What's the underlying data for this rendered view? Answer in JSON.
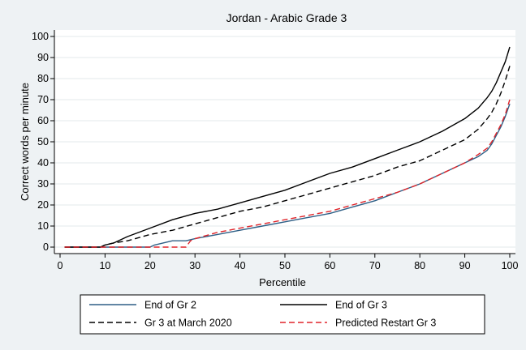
{
  "chart_data": {
    "type": "line",
    "title": "Jordan - Arabic Grade 3",
    "xlabel": "Percentile",
    "ylabel": "Correct words per minute",
    "xlim": [
      0,
      100
    ],
    "ylim": [
      0,
      100
    ],
    "x_ticks": [
      0,
      10,
      20,
      30,
      40,
      50,
      60,
      70,
      80,
      90,
      100
    ],
    "y_ticks": [
      0,
      10,
      20,
      30,
      40,
      50,
      60,
      70,
      80,
      90,
      100
    ],
    "grid": "horizontal",
    "legend_position": "bottom",
    "series": [
      {
        "name": "End of Gr 2",
        "color": "#2e5f86",
        "dash": "solid",
        "x": [
          1,
          10,
          15,
          20,
          21,
          23,
          25,
          28,
          30,
          35,
          40,
          45,
          50,
          55,
          60,
          65,
          70,
          75,
          80,
          85,
          90,
          93,
          95,
          96,
          97,
          98,
          99,
          100
        ],
        "y": [
          0,
          0,
          0,
          0,
          1,
          2,
          3,
          3,
          4,
          6,
          8,
          10,
          12,
          14,
          16,
          19,
          22,
          26,
          30,
          35,
          40,
          43,
          46,
          49,
          53,
          57,
          62,
          68
        ]
      },
      {
        "name": "End of Gr 3",
        "color": "#000000",
        "dash": "solid",
        "x": [
          1,
          5,
          9,
          10,
          12,
          15,
          20,
          25,
          30,
          35,
          40,
          45,
          50,
          55,
          60,
          65,
          70,
          75,
          80,
          85,
          90,
          93,
          95,
          96,
          97,
          98,
          99,
          100
        ],
        "y": [
          0,
          0,
          0,
          1,
          2,
          5,
          9,
          13,
          16,
          18,
          21,
          24,
          27,
          31,
          35,
          38,
          42,
          46,
          50,
          55,
          61,
          66,
          71,
          74,
          78,
          83,
          88,
          95
        ]
      },
      {
        "name": "Gr 3 at March 2020",
        "color": "#000000",
        "dash": "dashed",
        "x": [
          1,
          5,
          9,
          10,
          12,
          15,
          20,
          25,
          30,
          35,
          40,
          45,
          50,
          55,
          60,
          65,
          70,
          75,
          80,
          85,
          90,
          93,
          95,
          96,
          97,
          98,
          99,
          100
        ],
        "y": [
          0,
          0,
          0,
          1,
          2,
          3,
          6,
          8,
          11,
          14,
          17,
          19,
          22,
          25,
          28,
          31,
          34,
          38,
          41,
          46,
          51,
          56,
          61,
          64,
          68,
          73,
          79,
          86
        ]
      },
      {
        "name": "Predicted Restart Gr 3",
        "color": "#e0242a",
        "dash": "dashed",
        "x": [
          1,
          10,
          20,
          25,
          28,
          29,
          30,
          35,
          40,
          45,
          50,
          55,
          60,
          65,
          70,
          75,
          80,
          85,
          90,
          93,
          95,
          96,
          97,
          98,
          99,
          100
        ],
        "y": [
          0,
          0,
          0,
          0,
          0,
          3,
          4,
          7,
          9,
          11,
          13,
          15,
          17,
          20,
          23,
          26,
          30,
          35,
          40,
          44,
          47,
          50,
          54,
          58,
          63,
          70
        ]
      }
    ]
  }
}
